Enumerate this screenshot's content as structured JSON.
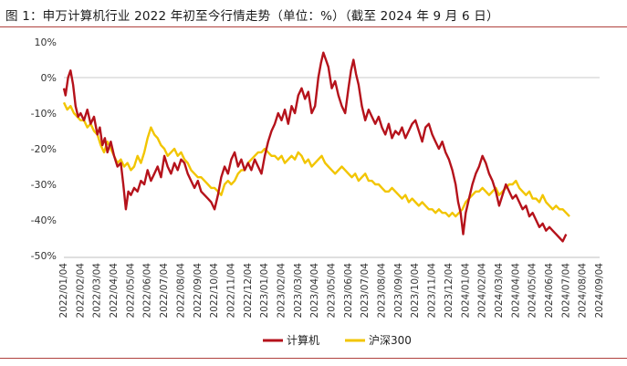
{
  "title": "图 1：申万计算机行业 2022 年初至今行情走势（单位：%）（截至 2024 年 9 月 6 日）",
  "colors": {
    "series1": "#b5121b",
    "series2": "#f2c500",
    "rule": "#b0413e",
    "zero": "#c8c8c8"
  },
  "chart_data": {
    "type": "line",
    "title": "图 1：申万计算机行业 2022 年初至今行情走势（单位：%）（截至 2024 年 9 月 6 日）",
    "xlabel": "",
    "ylabel": "",
    "ylim": [
      -50,
      10
    ],
    "yticks": [
      10,
      0,
      -10,
      -20,
      -30,
      -40,
      -50
    ],
    "ytick_labels": [
      "10%",
      "0%",
      "-10%",
      "-20%",
      "-30%",
      "-40%",
      "-50%"
    ],
    "x_labels": [
      "2022/01/04",
      "2022/02/04",
      "2022/03/04",
      "2022/04/04",
      "2022/05/04",
      "2022/06/04",
      "2022/07/04",
      "2022/08/04",
      "2022/09/04",
      "2022/10/04",
      "2022/11/04",
      "2022/12/04",
      "2023/01/04",
      "2023/02/04",
      "2023/03/04",
      "2023/04/04",
      "2023/05/04",
      "2023/06/04",
      "2023/07/04",
      "2023/08/04",
      "2023/09/04",
      "2023/10/04",
      "2023/11/04",
      "2023/12/04",
      "2024/01/04",
      "2024/02/04",
      "2024/03/04",
      "2024/04/04",
      "2024/05/04",
      "2024/06/04",
      "2024/07/04",
      "2024/08/04",
      "2024/09/04"
    ],
    "legend_position": "bottom-center",
    "grid": false,
    "series": [
      {
        "name": "计算机",
        "color": "#b5121b",
        "points": [
          [
            0,
            -3
          ],
          [
            0.1,
            -5
          ],
          [
            0.25,
            0
          ],
          [
            0.4,
            2
          ],
          [
            0.55,
            -2
          ],
          [
            0.7,
            -8
          ],
          [
            0.85,
            -11
          ],
          [
            1,
            -10
          ],
          [
            1.2,
            -12
          ],
          [
            1.4,
            -9
          ],
          [
            1.6,
            -13
          ],
          [
            1.8,
            -11
          ],
          [
            2,
            -16
          ],
          [
            2.15,
            -14
          ],
          [
            2.3,
            -19
          ],
          [
            2.45,
            -17
          ],
          [
            2.6,
            -21
          ],
          [
            2.8,
            -18
          ],
          [
            3,
            -22
          ],
          [
            3.2,
            -25
          ],
          [
            3.4,
            -24
          ],
          [
            3.55,
            -30
          ],
          [
            3.7,
            -37
          ],
          [
            3.85,
            -32
          ],
          [
            4,
            -33
          ],
          [
            4.2,
            -31
          ],
          [
            4.4,
            -32
          ],
          [
            4.6,
            -29
          ],
          [
            4.8,
            -30
          ],
          [
            5,
            -26
          ],
          [
            5.2,
            -29
          ],
          [
            5.4,
            -27
          ],
          [
            5.6,
            -25
          ],
          [
            5.8,
            -28
          ],
          [
            6,
            -22
          ],
          [
            6.2,
            -25
          ],
          [
            6.4,
            -27
          ],
          [
            6.6,
            -24
          ],
          [
            6.8,
            -26
          ],
          [
            7,
            -23
          ],
          [
            7.2,
            -24
          ],
          [
            7.4,
            -27
          ],
          [
            7.6,
            -29
          ],
          [
            7.8,
            -31
          ],
          [
            8,
            -29
          ],
          [
            8.2,
            -32
          ],
          [
            8.4,
            -33
          ],
          [
            8.6,
            -34
          ],
          [
            8.8,
            -35
          ],
          [
            9,
            -37
          ],
          [
            9.2,
            -33
          ],
          [
            9.4,
            -28
          ],
          [
            9.6,
            -25
          ],
          [
            9.8,
            -27
          ],
          [
            10,
            -23
          ],
          [
            10.2,
            -21
          ],
          [
            10.4,
            -25
          ],
          [
            10.6,
            -23
          ],
          [
            10.8,
            -26
          ],
          [
            11,
            -24
          ],
          [
            11.2,
            -26
          ],
          [
            11.4,
            -23
          ],
          [
            11.6,
            -25
          ],
          [
            11.8,
            -27
          ],
          [
            12,
            -22
          ],
          [
            12.2,
            -18
          ],
          [
            12.4,
            -15
          ],
          [
            12.6,
            -13
          ],
          [
            12.8,
            -10
          ],
          [
            13,
            -12
          ],
          [
            13.2,
            -9
          ],
          [
            13.4,
            -13
          ],
          [
            13.6,
            -8
          ],
          [
            13.8,
            -10
          ],
          [
            14,
            -5
          ],
          [
            14.2,
            -3
          ],
          [
            14.4,
            -6
          ],
          [
            14.6,
            -4
          ],
          [
            14.8,
            -10
          ],
          [
            15,
            -8
          ],
          [
            15.2,
            0
          ],
          [
            15.35,
            4
          ],
          [
            15.5,
            7
          ],
          [
            15.65,
            5
          ],
          [
            15.8,
            3
          ],
          [
            16,
            -3
          ],
          [
            16.2,
            -1
          ],
          [
            16.4,
            -5
          ],
          [
            16.6,
            -8
          ],
          [
            16.8,
            -10
          ],
          [
            17,
            -3
          ],
          [
            17.15,
            2
          ],
          [
            17.3,
            5
          ],
          [
            17.45,
            1
          ],
          [
            17.6,
            -2
          ],
          [
            17.8,
            -8
          ],
          [
            18,
            -12
          ],
          [
            18.2,
            -9
          ],
          [
            18.4,
            -11
          ],
          [
            18.6,
            -13
          ],
          [
            18.8,
            -11
          ],
          [
            19,
            -14
          ],
          [
            19.2,
            -16
          ],
          [
            19.4,
            -13
          ],
          [
            19.6,
            -17
          ],
          [
            19.8,
            -15
          ],
          [
            20,
            -16
          ],
          [
            20.2,
            -14
          ],
          [
            20.4,
            -17
          ],
          [
            20.6,
            -15
          ],
          [
            20.8,
            -13
          ],
          [
            21,
            -12
          ],
          [
            21.2,
            -15
          ],
          [
            21.4,
            -18
          ],
          [
            21.6,
            -14
          ],
          [
            21.8,
            -13
          ],
          [
            22,
            -16
          ],
          [
            22.2,
            -18
          ],
          [
            22.4,
            -20
          ],
          [
            22.6,
            -18
          ],
          [
            22.8,
            -21
          ],
          [
            23,
            -23
          ],
          [
            23.2,
            -26
          ],
          [
            23.4,
            -30
          ],
          [
            23.55,
            -35
          ],
          [
            23.7,
            -38
          ],
          [
            23.85,
            -44
          ],
          [
            24,
            -38
          ],
          [
            24.2,
            -34
          ],
          [
            24.4,
            -30
          ],
          [
            24.6,
            -27
          ],
          [
            24.8,
            -25
          ],
          [
            25,
            -22
          ],
          [
            25.2,
            -24
          ],
          [
            25.4,
            -27
          ],
          [
            25.6,
            -29
          ],
          [
            25.8,
            -32
          ],
          [
            26,
            -36
          ],
          [
            26.2,
            -33
          ],
          [
            26.4,
            -30
          ],
          [
            26.6,
            -32
          ],
          [
            26.8,
            -34
          ],
          [
            27,
            -33
          ],
          [
            27.2,
            -35
          ],
          [
            27.4,
            -37
          ],
          [
            27.6,
            -36
          ],
          [
            27.8,
            -39
          ],
          [
            28,
            -38
          ],
          [
            28.2,
            -40
          ],
          [
            28.4,
            -42
          ],
          [
            28.6,
            -41
          ],
          [
            28.8,
            -43
          ],
          [
            29,
            -42
          ],
          [
            29.2,
            -43
          ],
          [
            29.4,
            -44
          ],
          [
            29.6,
            -45
          ],
          [
            29.8,
            -46
          ],
          [
            30,
            -44
          ]
        ]
      },
      {
        "name": "沪深300",
        "color": "#f2c500",
        "points": [
          [
            0,
            -7
          ],
          [
            0.2,
            -9
          ],
          [
            0.4,
            -8
          ],
          [
            0.6,
            -10
          ],
          [
            0.8,
            -11
          ],
          [
            1,
            -12
          ],
          [
            1.2,
            -12
          ],
          [
            1.4,
            -14
          ],
          [
            1.6,
            -13
          ],
          [
            1.8,
            -15
          ],
          [
            2,
            -16
          ],
          [
            2.2,
            -19
          ],
          [
            2.4,
            -21
          ],
          [
            2.6,
            -18
          ],
          [
            2.8,
            -20
          ],
          [
            3,
            -22
          ],
          [
            3.2,
            -24
          ],
          [
            3.4,
            -23
          ],
          [
            3.6,
            -25
          ],
          [
            3.8,
            -24
          ],
          [
            4,
            -26
          ],
          [
            4.2,
            -25
          ],
          [
            4.4,
            -22
          ],
          [
            4.6,
            -24
          ],
          [
            4.8,
            -21
          ],
          [
            5,
            -17
          ],
          [
            5.2,
            -14
          ],
          [
            5.4,
            -16
          ],
          [
            5.6,
            -17
          ],
          [
            5.8,
            -19
          ],
          [
            6,
            -20
          ],
          [
            6.2,
            -22
          ],
          [
            6.4,
            -21
          ],
          [
            6.6,
            -20
          ],
          [
            6.8,
            -22
          ],
          [
            7,
            -21
          ],
          [
            7.2,
            -23
          ],
          [
            7.4,
            -24
          ],
          [
            7.6,
            -26
          ],
          [
            7.8,
            -27
          ],
          [
            8,
            -28
          ],
          [
            8.2,
            -28
          ],
          [
            8.4,
            -29
          ],
          [
            8.6,
            -30
          ],
          [
            8.8,
            -31
          ],
          [
            9,
            -31
          ],
          [
            9.2,
            -32
          ],
          [
            9.4,
            -33
          ],
          [
            9.6,
            -30
          ],
          [
            9.8,
            -29
          ],
          [
            10,
            -30
          ],
          [
            10.2,
            -29
          ],
          [
            10.4,
            -27
          ],
          [
            10.6,
            -26
          ],
          [
            10.8,
            -26
          ],
          [
            11,
            -24
          ],
          [
            11.2,
            -23
          ],
          [
            11.4,
            -22
          ],
          [
            11.6,
            -21
          ],
          [
            11.8,
            -21
          ],
          [
            12,
            -20
          ],
          [
            12.2,
            -21
          ],
          [
            12.4,
            -22
          ],
          [
            12.6,
            -22
          ],
          [
            12.8,
            -23
          ],
          [
            13,
            -22
          ],
          [
            13.2,
            -24
          ],
          [
            13.4,
            -23
          ],
          [
            13.6,
            -22
          ],
          [
            13.8,
            -23
          ],
          [
            14,
            -21
          ],
          [
            14.2,
            -22
          ],
          [
            14.4,
            -24
          ],
          [
            14.6,
            -23
          ],
          [
            14.8,
            -25
          ],
          [
            15,
            -24
          ],
          [
            15.2,
            -23
          ],
          [
            15.4,
            -22
          ],
          [
            15.6,
            -24
          ],
          [
            15.8,
            -25
          ],
          [
            16,
            -26
          ],
          [
            16.2,
            -27
          ],
          [
            16.4,
            -26
          ],
          [
            16.6,
            -25
          ],
          [
            16.8,
            -26
          ],
          [
            17,
            -27
          ],
          [
            17.2,
            -28
          ],
          [
            17.4,
            -27
          ],
          [
            17.6,
            -29
          ],
          [
            17.8,
            -28
          ],
          [
            18,
            -27
          ],
          [
            18.2,
            -29
          ],
          [
            18.4,
            -29
          ],
          [
            18.6,
            -30
          ],
          [
            18.8,
            -30
          ],
          [
            19,
            -31
          ],
          [
            19.2,
            -32
          ],
          [
            19.4,
            -32
          ],
          [
            19.6,
            -31
          ],
          [
            19.8,
            -32
          ],
          [
            20,
            -33
          ],
          [
            20.2,
            -34
          ],
          [
            20.4,
            -33
          ],
          [
            20.6,
            -35
          ],
          [
            20.8,
            -34
          ],
          [
            21,
            -35
          ],
          [
            21.2,
            -36
          ],
          [
            21.4,
            -35
          ],
          [
            21.6,
            -36
          ],
          [
            21.8,
            -37
          ],
          [
            22,
            -37
          ],
          [
            22.2,
            -38
          ],
          [
            22.4,
            -37
          ],
          [
            22.6,
            -38
          ],
          [
            22.8,
            -38
          ],
          [
            23,
            -39
          ],
          [
            23.2,
            -38
          ],
          [
            23.4,
            -39
          ],
          [
            23.6,
            -38
          ],
          [
            23.8,
            -37
          ],
          [
            24,
            -35
          ],
          [
            24.2,
            -34
          ],
          [
            24.4,
            -33
          ],
          [
            24.6,
            -32
          ],
          [
            24.8,
            -32
          ],
          [
            25,
            -31
          ],
          [
            25.2,
            -32
          ],
          [
            25.4,
            -33
          ],
          [
            25.6,
            -32
          ],
          [
            25.8,
            -31
          ],
          [
            26,
            -33
          ],
          [
            26.2,
            -32
          ],
          [
            26.4,
            -31
          ],
          [
            26.6,
            -30
          ],
          [
            26.8,
            -30
          ],
          [
            27,
            -29
          ],
          [
            27.2,
            -31
          ],
          [
            27.4,
            -32
          ],
          [
            27.6,
            -33
          ],
          [
            27.8,
            -32
          ],
          [
            28,
            -34
          ],
          [
            28.2,
            -34
          ],
          [
            28.4,
            -35
          ],
          [
            28.6,
            -33
          ],
          [
            28.8,
            -35
          ],
          [
            29,
            -36
          ],
          [
            29.2,
            -37
          ],
          [
            29.4,
            -36
          ],
          [
            29.6,
            -37
          ],
          [
            29.8,
            -37
          ],
          [
            30,
            -38
          ],
          [
            30.2,
            -39
          ]
        ]
      }
    ]
  }
}
